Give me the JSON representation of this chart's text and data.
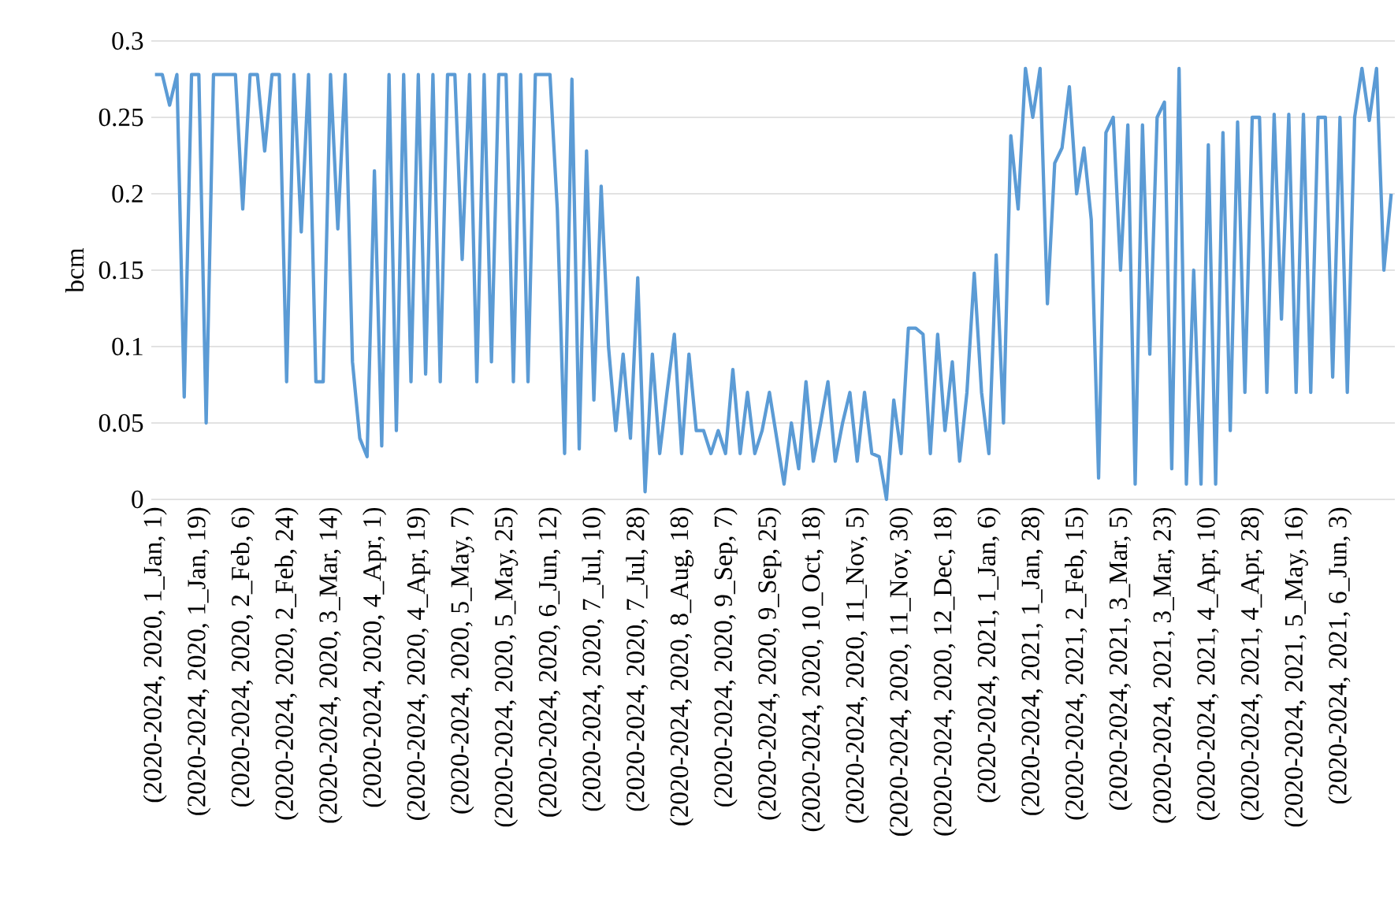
{
  "chart_data": {
    "type": "line",
    "ylabel": "bcm",
    "categories": [
      "(2020-2024, 2020, 1_Jan, 1)",
      null,
      null,
      null,
      null,
      null,
      "(2020-2024, 2020, 1_Jan, 19)",
      null,
      null,
      null,
      null,
      null,
      "(2020-2024, 2020, 2_Feb, 6)",
      null,
      null,
      null,
      null,
      null,
      "(2020-2024, 2020, 2_Feb, 24)",
      null,
      null,
      null,
      null,
      null,
      "(2020-2024, 2020, 3_Mar, 14)",
      null,
      null,
      null,
      null,
      null,
      "(2020-2024, 2020, 4_Apr, 1)",
      null,
      null,
      null,
      null,
      null,
      "(2020-2024, 2020, 4_Apr, 19)",
      null,
      null,
      null,
      null,
      null,
      "(2020-2024, 2020, 5_May, 7)",
      null,
      null,
      null,
      null,
      null,
      "(2020-2024, 2020, 5_May, 25)",
      null,
      null,
      null,
      null,
      null,
      "(2020-2024, 2020, 6_Jun, 12)",
      null,
      null,
      null,
      null,
      null,
      "(2020-2024, 2020, 7_Jul, 10)",
      null,
      null,
      null,
      null,
      null,
      "(2020-2024, 2020, 7_Jul, 28)",
      null,
      null,
      null,
      null,
      null,
      "(2020-2024, 2020, 8_Aug, 18)",
      null,
      null,
      null,
      null,
      null,
      "(2020-2024, 2020, 9_Sep, 7)",
      null,
      null,
      null,
      null,
      null,
      "(2020-2024, 2020, 9_Sep, 25)",
      null,
      null,
      null,
      null,
      null,
      "(2020-2024, 2020, 10_Oct, 18)",
      null,
      null,
      null,
      null,
      null,
      "(2020-2024, 2020, 11_Nov, 5)",
      null,
      null,
      null,
      null,
      null,
      "(2020-2024, 2020, 11_Nov, 30)",
      null,
      null,
      null,
      null,
      null,
      "(2020-2024, 2020, 12_Dec, 18)",
      null,
      null,
      null,
      null,
      null,
      "(2020-2024, 2021, 1_Jan, 6)",
      null,
      null,
      null,
      null,
      null,
      "(2020-2024, 2021, 1_Jan, 28)",
      null,
      null,
      null,
      null,
      null,
      "(2020-2024, 2021, 2_Feb, 15)",
      null,
      null,
      null,
      null,
      null,
      "(2020-2024, 2021, 3_Mar, 5)",
      null,
      null,
      null,
      null,
      null,
      "(2020-2024, 2021, 3_Mar, 23)",
      null,
      null,
      null,
      null,
      null,
      "(2020-2024, 2021, 4_Apr, 10)",
      null,
      null,
      null,
      null,
      null,
      "(2020-2024, 2021, 4_Apr, 28)",
      null,
      null,
      null,
      null,
      null,
      "(2020-2024, 2021, 5_May, 16)",
      null,
      null,
      null,
      null,
      null,
      "(2020-2024, 2021, 6_Jun, 3)",
      null,
      null,
      null,
      null,
      null,
      null,
      null
    ],
    "series": [
      {
        "color": "#5b9bd5",
        "values": [
          0.278,
          0.278,
          0.258,
          0.278,
          0.067,
          0.278,
          0.278,
          0.05,
          0.278,
          0.278,
          0.278,
          0.278,
          0.19,
          0.278,
          0.278,
          0.228,
          0.278,
          0.278,
          0.077,
          0.278,
          0.175,
          0.278,
          0.077,
          0.077,
          0.278,
          0.177,
          0.278,
          0.09,
          0.04,
          0.028,
          0.215,
          0.035,
          0.278,
          0.045,
          0.278,
          0.077,
          0.278,
          0.082,
          0.278,
          0.077,
          0.278,
          0.278,
          0.157,
          0.278,
          0.077,
          0.278,
          0.09,
          0.278,
          0.278,
          0.077,
          0.278,
          0.077,
          0.278,
          0.278,
          0.278,
          0.19,
          0.03,
          0.275,
          0.033,
          0.228,
          0.065,
          0.205,
          0.1,
          0.045,
          0.095,
          0.04,
          0.145,
          0.005,
          0.095,
          0.03,
          0.07,
          0.108,
          0.03,
          0.095,
          0.045,
          0.045,
          0.03,
          0.045,
          0.03,
          0.085,
          0.03,
          0.07,
          0.03,
          0.045,
          0.07,
          0.04,
          0.01,
          0.05,
          0.02,
          0.077,
          0.025,
          0.05,
          0.077,
          0.025,
          0.05,
          0.07,
          0.025,
          0.07,
          0.03,
          0.028,
          0,
          0.065,
          0.03,
          0.112,
          0.112,
          0.108,
          0.03,
          0.108,
          0.045,
          0.09,
          0.025,
          0.07,
          0.148,
          0.07,
          0.03,
          0.16,
          0.05,
          0.238,
          0.19,
          0.282,
          0.25,
          0.282,
          0.128,
          0.22,
          0.23,
          0.27,
          0.2,
          0.23,
          0.183,
          0.014,
          0.24,
          0.25,
          0.15,
          0.245,
          0.01,
          0.245,
          0.095,
          0.25,
          0.26,
          0.02,
          0.282,
          0.01,
          0.15,
          0.01,
          0.232,
          0.01,
          0.24,
          0.045,
          0.247,
          0.07,
          0.25,
          0.25,
          0.07,
          0.252,
          0.118,
          0.252,
          0.07,
          0.252,
          0.07,
          0.25,
          0.25,
          0.08,
          0.25,
          0.07,
          0.25,
          0.282,
          0.248,
          0.282,
          0.15,
          0.2
        ]
      }
    ],
    "ylim": [
      0,
      0.3
    ],
    "yticks": [
      0,
      0.05,
      0.1,
      0.15,
      0.2,
      0.25,
      0.3
    ],
    "grid": "y",
    "marker": "none",
    "line_style": "solid"
  }
}
